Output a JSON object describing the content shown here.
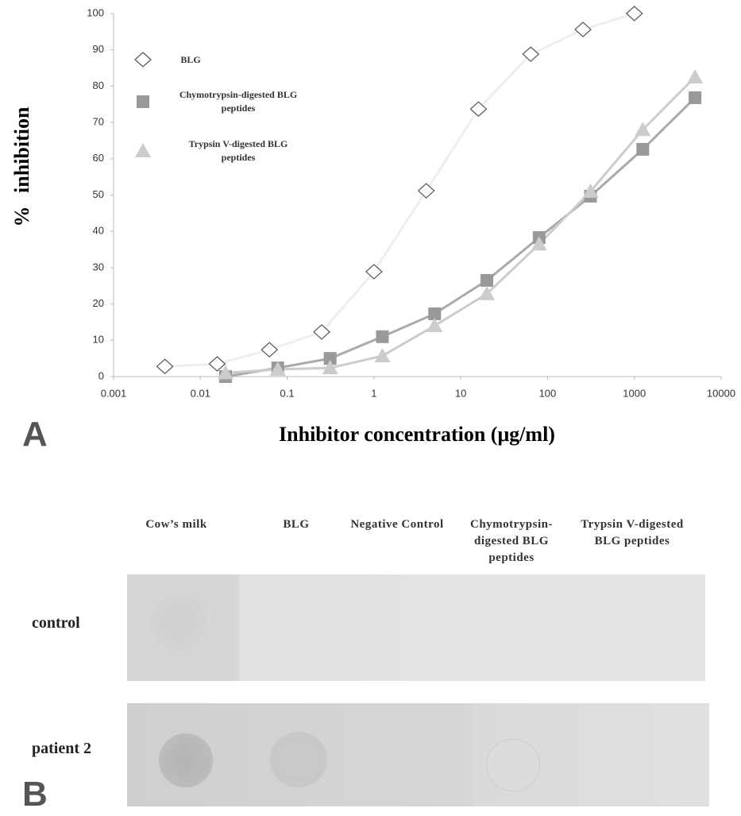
{
  "chart_data": {
    "type": "line",
    "y_label": "% inhibition",
    "x_label": "Inhibitor concentration (μg/ml)",
    "panel_label": "A",
    "x_scale": "log",
    "xlim": [
      0.001,
      10000
    ],
    "xticks": [
      0.001,
      0.01,
      0.1,
      1,
      10,
      100,
      1000,
      10000
    ],
    "ylim": [
      0,
      100
    ],
    "yticks": [
      0,
      10,
      20,
      30,
      40,
      50,
      60,
      70,
      80,
      90,
      100
    ],
    "legend": "upper left",
    "series": [
      {
        "name": "BLG",
        "marker": "diamond",
        "color": "#eeeeee",
        "marker_color": "#555555",
        "x": [
          0.0039,
          0.0156,
          0.0625,
          0.25,
          1,
          4,
          16,
          64,
          256,
          1000
        ],
        "values": [
          2.8,
          3.5,
          7.4,
          12.3,
          28.9,
          51.2,
          73.7,
          88.8,
          95.6,
          100
        ]
      },
      {
        "name": "Chymotrypsin-digested BLG peptides",
        "marker": "square",
        "color": "#aaaaaa",
        "marker_color": "#999999",
        "x": [
          0.0195,
          0.078,
          0.3125,
          1.25,
          5,
          20,
          80,
          312.5,
          1250,
          5000
        ],
        "values": [
          0,
          2.4,
          5,
          11,
          17.3,
          26.5,
          38.3,
          49.7,
          62.6,
          76.8
        ]
      },
      {
        "name": "Trypsin V-digested BLG peptides",
        "marker": "triangle",
        "color": "#cccccc",
        "marker_color": "#cccccc",
        "x": [
          0.0195,
          0.078,
          0.3125,
          1.25,
          5,
          20,
          80,
          312.5,
          1250,
          5000
        ],
        "values": [
          1,
          2,
          2.4,
          5.7,
          14,
          22.8,
          36.5,
          51,
          68,
          82.5
        ]
      }
    ]
  },
  "dot_blot": {
    "panel_label": "B",
    "columns": [
      "Cow’s milk",
      "BLG",
      "Negative Control",
      "Chymotrypsin-digested BLG peptides",
      "Trypsin V-digested BLG peptides"
    ],
    "rows": [
      "control",
      "patient 2"
    ]
  }
}
